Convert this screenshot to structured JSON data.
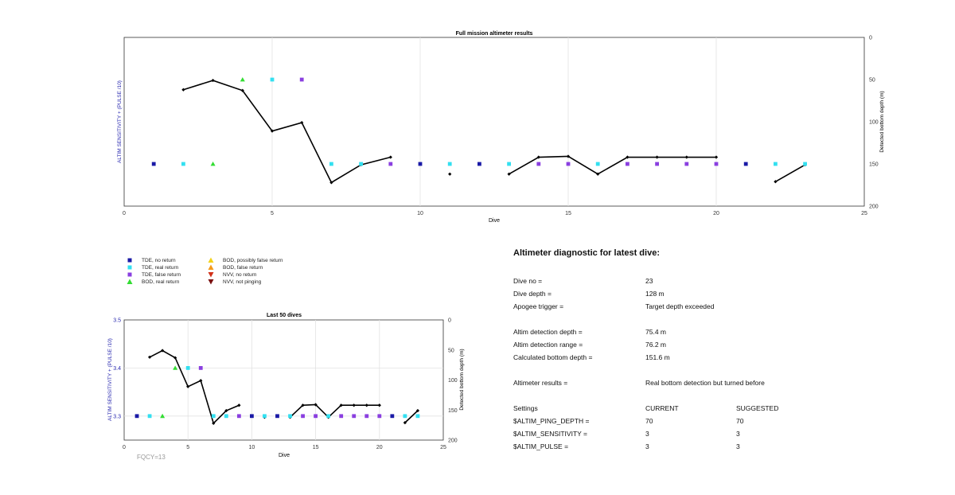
{
  "chart_data": [
    {
      "type": "scatter",
      "title": "Full mission altimeter results",
      "xlabel": "Dive",
      "ylabel": "ALTIM SENSITIVITY + (PULSE /10)",
      "ylabel_right": "Detected bottom depth (m)",
      "xlim": [
        0,
        25
      ],
      "x_ticks": [
        "0",
        "5",
        "10",
        "15",
        "20",
        "25"
      ],
      "right_ylim": [
        0,
        200
      ],
      "right_ticks": [
        "0",
        "50",
        "100",
        "150",
        "200"
      ],
      "grid": "vertical at x ticks",
      "markers": [
        {
          "x": 1,
          "level": "low",
          "type": "tde_no_return"
        },
        {
          "x": 2,
          "level": "low",
          "type": "tde_real_return"
        },
        {
          "x": 3,
          "level": "low",
          "type": "bod_real_return"
        },
        {
          "x": 4,
          "level": "high",
          "type": "bod_real_return"
        },
        {
          "x": 5,
          "level": "high",
          "type": "tde_real_return"
        },
        {
          "x": 6,
          "level": "high",
          "type": "tde_false_return"
        },
        {
          "x": 7,
          "level": "low",
          "type": "tde_real_return"
        },
        {
          "x": 8,
          "level": "low",
          "type": "tde_real_return"
        },
        {
          "x": 9,
          "level": "low",
          "type": "tde_false_return"
        },
        {
          "x": 10,
          "level": "low",
          "type": "tde_no_return"
        },
        {
          "x": 11,
          "level": "low",
          "type": "tde_real_return"
        },
        {
          "x": 12,
          "level": "low",
          "type": "tde_no_return"
        },
        {
          "x": 13,
          "level": "low",
          "type": "tde_real_return"
        },
        {
          "x": 14,
          "level": "low",
          "type": "tde_false_return"
        },
        {
          "x": 15,
          "level": "low",
          "type": "tde_false_return"
        },
        {
          "x": 16,
          "level": "low",
          "type": "tde_real_return"
        },
        {
          "x": 17,
          "level": "low",
          "type": "tde_false_return"
        },
        {
          "x": 18,
          "level": "low",
          "type": "tde_false_return"
        },
        {
          "x": 19,
          "level": "low",
          "type": "tde_false_return"
        },
        {
          "x": 20,
          "level": "low",
          "type": "tde_false_return"
        },
        {
          "x": 21,
          "level": "low",
          "type": "tde_no_return"
        },
        {
          "x": 22,
          "level": "low",
          "type": "tde_real_return"
        },
        {
          "x": 23,
          "level": "low",
          "type": "tde_real_return"
        }
      ],
      "depth_segments": [
        [
          [
            2,
            62
          ],
          [
            3,
            51
          ],
          [
            4,
            63
          ],
          [
            5,
            111
          ],
          [
            6,
            101
          ],
          [
            7,
            172
          ],
          [
            8,
            151
          ],
          [
            9,
            142
          ]
        ],
        [
          [
            11,
            162
          ]
        ],
        [
          [
            13,
            162
          ],
          [
            14,
            142
          ],
          [
            15,
            141
          ],
          [
            16,
            162
          ],
          [
            17,
            142
          ],
          [
            18,
            142
          ],
          [
            19,
            142
          ],
          [
            20,
            142
          ]
        ],
        [
          [
            22,
            171
          ],
          [
            23,
            151
          ]
        ]
      ]
    },
    {
      "type": "scatter",
      "title": "Last 50 dives",
      "xlabel": "Dive",
      "ylabel": "ALTIM SENSITIVITY + (PULSE /10)",
      "ylabel_right": "Detected bottom depth (m)",
      "xlim": [
        0,
        25
      ],
      "x_ticks": [
        "0",
        "5",
        "10",
        "15",
        "20",
        "25"
      ],
      "ylim": [
        3.25,
        3.5
      ],
      "y_ticks": [
        "3.3",
        "3.4",
        "3.5"
      ],
      "right_ylim": [
        0,
        200
      ],
      "right_ticks": [
        "0",
        "50",
        "100",
        "150",
        "200"
      ],
      "grid": "both",
      "markers_ref": "same as full mission",
      "depth_segments_ref": "same as full mission",
      "annotation": "FQCY=13"
    }
  ],
  "legend": [
    {
      "label": "TDE, no return",
      "shape": "square",
      "color": "#1a1aa6"
    },
    {
      "label": "TDE, real return",
      "shape": "square",
      "color": "#33e0f0"
    },
    {
      "label": "TDE, false return",
      "shape": "square",
      "color": "#8a3fe0"
    },
    {
      "label": "BOD, real return",
      "shape": "triangle-up",
      "color": "#33dd33"
    },
    {
      "label": "BOD, possibly false return",
      "shape": "triangle-up",
      "color": "#f2d21a"
    },
    {
      "label": "BOD, false return",
      "shape": "triangle-up",
      "color": "#f59a1a"
    },
    {
      "label": "NVV, no return",
      "shape": "triangle-down",
      "color": "#d2321a"
    },
    {
      "label": "NVV, not pinging",
      "shape": "triangle-down",
      "color": "#7a1010"
    }
  ],
  "colors": {
    "tde_no_return": "#1a1aa6",
    "tde_real_return": "#33e0f0",
    "tde_false_return": "#8a3fe0",
    "bod_real_return": "#33dd33",
    "depth_line": "#000000",
    "left_axis_label": "#2b2bb0"
  },
  "diagnostic": {
    "title": "Altimeter diagnostic for latest dive:",
    "rows": [
      {
        "label": "Dive no =",
        "value": "23"
      },
      {
        "label": "Dive depth =",
        "value": "128 m"
      },
      {
        "label": "Apogee trigger =",
        "value": "Target depth exceeded"
      },
      {
        "label": "Altim detection depth =",
        "value": "75.4 m"
      },
      {
        "label": "Altim detection range =",
        "value": "76.2 m"
      },
      {
        "label": "Calculated bottom depth =",
        "value": "151.6 m"
      },
      {
        "label": "Altimeter results =",
        "value": "Real bottom detection but turned before"
      }
    ],
    "settings": {
      "header": {
        "label": "Settings",
        "current": "CURRENT",
        "suggested": "SUGGESTED"
      },
      "rows": [
        {
          "label": "$ALTIM_PING_DEPTH =",
          "current": "70",
          "suggested": "70"
        },
        {
          "label": "$ALTIM_SENSITIVITY =",
          "current": "3",
          "suggested": "3"
        },
        {
          "label": "$ALTIM_PULSE =",
          "current": "3",
          "suggested": "3"
        }
      ]
    }
  }
}
